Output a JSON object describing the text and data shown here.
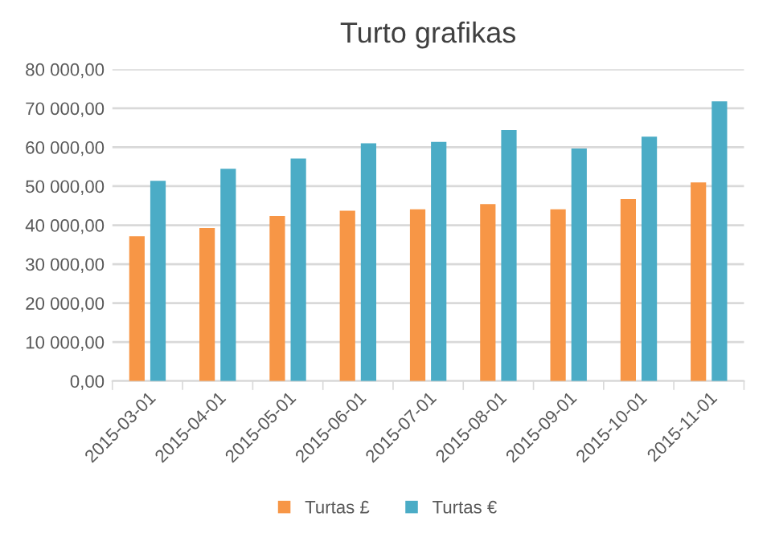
{
  "chart_data": {
    "type": "bar",
    "title": "Turto grafikas",
    "categories": [
      "2015-03-01",
      "2015-04-01",
      "2015-05-01",
      "2015-06-01",
      "2015-07-01",
      "2015-08-01",
      "2015-09-01",
      "2015-10-01",
      "2015-11-01"
    ],
    "series": [
      {
        "name": "Turtas £",
        "color": "#f79646",
        "values": [
          37200,
          39300,
          42400,
          43700,
          44100,
          45400,
          44100,
          46700,
          51000
        ]
      },
      {
        "name": "Turtas €",
        "color": "#4bacc6",
        "values": [
          51400,
          54500,
          57100,
          61000,
          61400,
          64400,
          59700,
          62700,
          71800
        ]
      }
    ],
    "ylim": [
      0,
      80000
    ],
    "yticks": [
      {
        "value": 0,
        "label": "0,00"
      },
      {
        "value": 10000,
        "label": "10 000,00"
      },
      {
        "value": 20000,
        "label": "20 000,00"
      },
      {
        "value": 30000,
        "label": "30 000,00"
      },
      {
        "value": 40000,
        "label": "40 000,00"
      },
      {
        "value": 50000,
        "label": "50 000,00"
      },
      {
        "value": 60000,
        "label": "60 000,00"
      },
      {
        "value": 70000,
        "label": "70 000,00"
      },
      {
        "value": 80000,
        "label": "80 000,00"
      }
    ],
    "grid": "y",
    "legend": "bottom"
  }
}
